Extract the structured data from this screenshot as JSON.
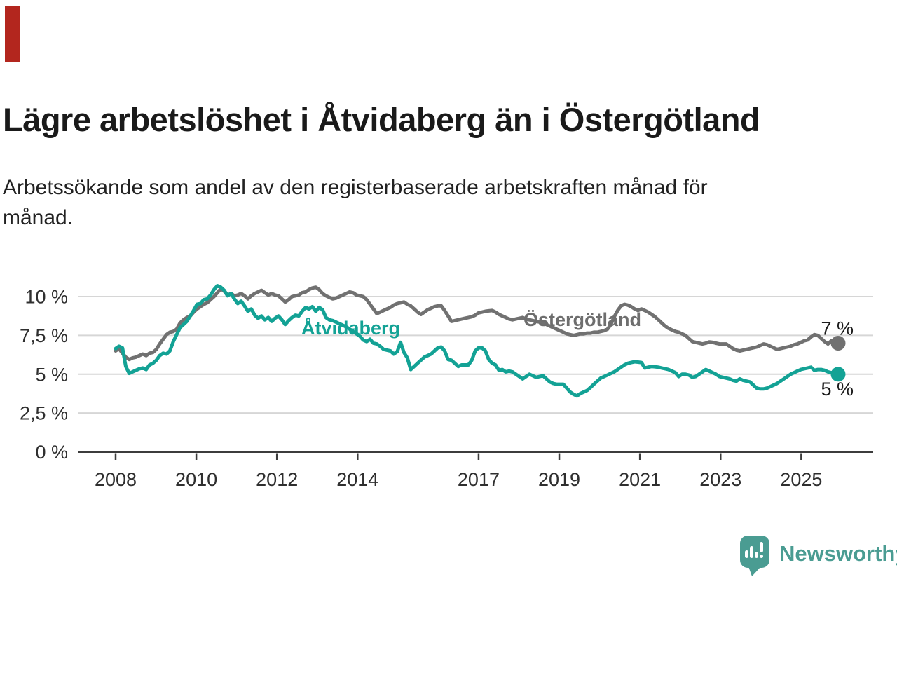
{
  "badge": {
    "color": "#b3261e"
  },
  "header": {
    "title": "Lägre arbetslöshet i Åtvidaberg än i Östergötland",
    "subtitle_lines": [
      "Arbetssökande som andel av den registerbaserade arbetskraften månad för",
      "månad."
    ]
  },
  "chart_data": {
    "type": "line",
    "unit": "%",
    "x_start": "2008-01",
    "x_end": "2025-10",
    "y_axis": {
      "ticks": [
        "0 %",
        "2,5 %",
        "5 %",
        "7,5 %",
        "10 %"
      ],
      "tick_values": [
        0,
        2.5,
        5,
        7.5,
        10
      ],
      "range": [
        0,
        11.9
      ],
      "grid": true
    },
    "x_axis": {
      "tick_years": [
        2008,
        2010,
        2012,
        2014,
        2017,
        2019,
        2021,
        2023,
        2025
      ]
    },
    "style": {
      "grid_color": "#d6d6d6",
      "axis_color": "#3c3c3c",
      "axis_text_color": "#2f2f2f",
      "end_label_color": "#1b1b1b"
    },
    "series": [
      {
        "name": "Åtvidaberg",
        "color": "#13a295",
        "end_label": "5 %",
        "values": [
          6.65,
          6.8,
          6.7,
          5.5,
          5.05,
          5.15,
          5.25,
          5.35,
          5.4,
          5.3,
          5.6,
          5.7,
          5.9,
          6.2,
          6.35,
          6.3,
          6.5,
          7.1,
          7.55,
          8.0,
          8.2,
          8.4,
          8.75,
          9.1,
          9.5,
          9.55,
          9.8,
          9.85,
          10.1,
          10.45,
          10.7,
          10.6,
          10.4,
          10.05,
          10.2,
          9.85,
          9.55,
          9.7,
          9.4,
          9.05,
          9.2,
          8.8,
          8.6,
          8.75,
          8.5,
          8.65,
          8.4,
          8.6,
          8.75,
          8.5,
          8.2,
          8.45,
          8.65,
          8.8,
          8.75,
          9.05,
          9.3,
          9.2,
          9.35,
          9.05,
          9.3,
          9.15,
          8.65,
          8.5,
          8.45,
          8.35,
          8.25,
          8.15,
          8.05,
          7.9,
          7.75,
          7.6,
          7.45,
          7.2,
          7.1,
          7.25,
          7.0,
          6.95,
          6.8,
          6.6,
          6.55,
          6.5,
          6.3,
          6.45,
          7.05,
          6.4,
          6.05,
          5.3,
          5.5,
          5.7,
          5.9,
          6.1,
          6.2,
          6.3,
          6.5,
          6.7,
          6.75,
          6.5,
          5.95,
          5.9,
          5.7,
          5.5,
          5.6,
          5.6,
          5.6,
          5.9,
          6.5,
          6.7,
          6.7,
          6.5,
          5.95,
          5.7,
          5.6,
          5.25,
          5.3,
          5.15,
          5.2,
          5.15,
          5.0,
          4.85,
          4.7,
          4.85,
          5.0,
          4.9,
          4.8,
          4.85,
          4.9,
          4.7,
          4.5,
          4.4,
          4.35,
          4.35,
          4.35,
          4.1,
          3.85,
          3.7,
          3.6,
          3.75,
          3.85,
          3.95,
          4.15,
          4.35,
          4.55,
          4.75,
          4.85,
          4.95,
          5.05,
          5.15,
          5.3,
          5.45,
          5.6,
          5.7,
          5.75,
          5.8,
          5.78,
          5.75,
          5.4,
          5.45,
          5.5,
          5.48,
          5.45,
          5.4,
          5.35,
          5.3,
          5.2,
          5.1,
          4.85,
          5.0,
          5.0,
          4.95,
          4.8,
          4.85,
          5.0,
          5.15,
          5.3,
          5.2,
          5.1,
          5.0,
          4.85,
          4.8,
          4.75,
          4.7,
          4.6,
          4.55,
          4.7,
          4.6,
          4.55,
          4.5,
          4.3,
          4.1,
          4.05,
          4.05,
          4.1,
          4.2,
          4.3,
          4.4,
          4.55,
          4.7,
          4.85,
          5.0,
          5.1,
          5.2,
          5.3,
          5.35,
          5.4,
          5.45,
          5.25,
          5.3,
          5.3,
          5.25,
          5.15,
          5.1,
          5.05,
          5.0
        ]
      },
      {
        "name": "Östergötland",
        "color": "#717171",
        "label_color": "#6e6e6e",
        "end_label": "7 %",
        "values": [
          6.5,
          6.65,
          6.35,
          6.1,
          5.95,
          6.05,
          6.1,
          6.2,
          6.3,
          6.2,
          6.35,
          6.4,
          6.6,
          6.95,
          7.25,
          7.55,
          7.7,
          7.75,
          7.9,
          8.3,
          8.5,
          8.65,
          8.75,
          9.0,
          9.2,
          9.35,
          9.5,
          9.6,
          9.8,
          10.0,
          10.25,
          10.5,
          10.35,
          10.1,
          10.2,
          10.05,
          10.1,
          10.2,
          10.05,
          9.85,
          10.05,
          10.2,
          10.3,
          10.4,
          10.25,
          10.1,
          10.2,
          10.1,
          10.05,
          9.85,
          9.65,
          9.8,
          10.0,
          10.05,
          10.1,
          10.25,
          10.3,
          10.45,
          10.55,
          10.6,
          10.45,
          10.2,
          10.05,
          9.95,
          9.85,
          9.9,
          10.0,
          10.1,
          10.2,
          10.3,
          10.25,
          10.1,
          10.05,
          10.0,
          9.8,
          9.5,
          9.2,
          8.9,
          9.0,
          9.1,
          9.2,
          9.3,
          9.45,
          9.55,
          9.6,
          9.65,
          9.5,
          9.4,
          9.2,
          9.0,
          8.85,
          9.0,
          9.15,
          9.25,
          9.35,
          9.4,
          9.4,
          9.1,
          8.75,
          8.4,
          8.45,
          8.5,
          8.55,
          8.6,
          8.65,
          8.7,
          8.8,
          8.95,
          9.0,
          9.05,
          9.08,
          9.1,
          9.0,
          8.85,
          8.75,
          8.65,
          8.55,
          8.5,
          8.55,
          8.6,
          8.65,
          8.55,
          8.5,
          8.45,
          8.4,
          8.35,
          8.3,
          8.2,
          8.1,
          8.0,
          7.9,
          7.8,
          7.7,
          7.6,
          7.55,
          7.5,
          7.55,
          7.6,
          7.6,
          7.65,
          7.65,
          7.7,
          7.7,
          7.75,
          7.8,
          7.9,
          8.2,
          8.7,
          9.1,
          9.4,
          9.5,
          9.45,
          9.35,
          9.2,
          9.1,
          9.2,
          9.1,
          9.0,
          8.85,
          8.7,
          8.5,
          8.3,
          8.1,
          7.95,
          7.85,
          7.75,
          7.7,
          7.6,
          7.5,
          7.3,
          7.1,
          7.05,
          7.0,
          6.95,
          7.0,
          7.08,
          7.05,
          7.0,
          6.95,
          6.95,
          6.95,
          6.8,
          6.65,
          6.55,
          6.5,
          6.55,
          6.6,
          6.65,
          6.7,
          6.75,
          6.85,
          6.95,
          6.9,
          6.8,
          6.7,
          6.6,
          6.65,
          6.7,
          6.75,
          6.8,
          6.9,
          6.95,
          7.05,
          7.15,
          7.2,
          7.4,
          7.55,
          7.5,
          7.3,
          7.1,
          6.95,
          7.15,
          7.2,
          7.0
        ]
      }
    ]
  },
  "footer": {
    "brand": "Newsworthy"
  }
}
